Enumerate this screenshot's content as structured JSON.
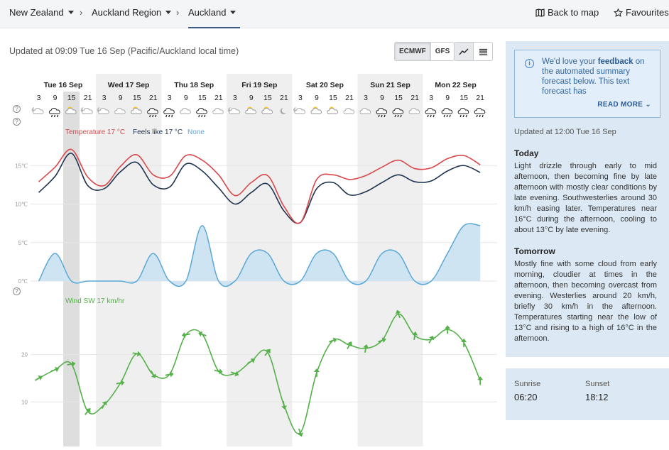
{
  "breadcrumbs": [
    {
      "label": "New Zealand"
    },
    {
      "label": "Auckland Region"
    },
    {
      "label": "Auckland"
    }
  ],
  "nav": {
    "back_to_map": "Back to map",
    "favourites": "Favourites"
  },
  "updated": "Updated at 09:09 Tue 16 Sep (Pacific/Auckland local time)",
  "models": [
    "ECMWF",
    "GFS"
  ],
  "selected_model": "ECMWF",
  "days": [
    {
      "label": "Tue 16 Sep",
      "hours": [
        "3",
        "9",
        "15",
        "21"
      ],
      "icons": [
        "cloud-moon",
        "cloud-rain",
        "sun-cloud",
        "cloud-moon"
      ]
    },
    {
      "label": "Wed 17 Sep",
      "hours": [
        "3",
        "9",
        "15",
        "21"
      ],
      "icons": [
        "cloud-moon",
        "cloud",
        "sun-cloud",
        "cloud-rain"
      ]
    },
    {
      "label": "Thu 18 Sep",
      "hours": [
        "3",
        "9",
        "15",
        "21"
      ],
      "icons": [
        "cloud-rain",
        "cloud",
        "cloud-rain",
        "cloud"
      ]
    },
    {
      "label": "Fri 19 Sep",
      "hours": [
        "3",
        "9",
        "15",
        "21"
      ],
      "icons": [
        "cloud-moon",
        "sun-cloud",
        "sun-cloud",
        "moon"
      ]
    },
    {
      "label": "Sat 20 Sep",
      "hours": [
        "3",
        "9",
        "15",
        "21"
      ],
      "icons": [
        "cloud-moon",
        "sun-cloud",
        "sun-cloud",
        "cloud"
      ]
    },
    {
      "label": "Sun 21 Sep",
      "hours": [
        "3",
        "9",
        "15",
        "21"
      ],
      "icons": [
        "cloud",
        "cloud-rain",
        "cloud-rain",
        "cloud"
      ]
    },
    {
      "label": "Mon 22 Sep",
      "hours": [
        "3",
        "9",
        "15",
        "21"
      ],
      "icons": [
        "cloud-rain",
        "cloud-rain",
        "cloud-rain",
        "cloud-rain"
      ]
    }
  ],
  "colors": {
    "temperature": "#d9484b",
    "feels_like": "#1f3350",
    "rain": "#5ba8d6",
    "wind": "#55b04a"
  },
  "chart_data": [
    {
      "type": "line",
      "legend": [
        "Temperature 17 °C",
        "Feels like 17 °C",
        "None"
      ],
      "y_ticks": [
        "15℃",
        "10℃",
        "5℃",
        "0℃"
      ],
      "x": [
        "Tue 3",
        "Tue 9",
        "Tue 15",
        "Tue 21",
        "Wed 3",
        "Wed 9",
        "Wed 15",
        "Wed 21",
        "Thu 3",
        "Thu 9",
        "Thu 15",
        "Thu 21",
        "Fri 3",
        "Fri 9",
        "Fri 15",
        "Fri 21",
        "Sat 3",
        "Sat 9",
        "Sat 15",
        "Sat 21",
        "Sun 3",
        "Sun 9",
        "Sun 15",
        "Sun 21",
        "Mon 3",
        "Mon 9",
        "Mon 15",
        "Mon 21"
      ],
      "series": [
        {
          "name": "Temperature 17 °C",
          "values": [
            12.9,
            14.8,
            17.1,
            13.5,
            12.4,
            14.9,
            16.4,
            13.8,
            13.6,
            16.3,
            15.7,
            13.8,
            11.1,
            12.8,
            13.7,
            9.7,
            7.6,
            13.2,
            13.8,
            13.2,
            13.7,
            14.8,
            15.7,
            14.6,
            14.7,
            15.9,
            16.3,
            15.1
          ]
        },
        {
          "name": "Feels like 17 °C",
          "values": [
            11.5,
            13.6,
            16.6,
            12.4,
            12.0,
            14.2,
            15.4,
            12.5,
            12.2,
            15.2,
            14.3,
            12.1,
            10.0,
            11.5,
            12.6,
            9.1,
            7.6,
            12.0,
            12.8,
            11.2,
            11.6,
            12.8,
            13.8,
            12.9,
            13.0,
            14.3,
            15.0,
            14.1
          ]
        },
        {
          "name": "None",
          "values": [
            0,
            3.6,
            0,
            0,
            0,
            0,
            0,
            3.6,
            0,
            0,
            7.2,
            0,
            0,
            3.6,
            3.6,
            0,
            0,
            3.6,
            3.6,
            0,
            0,
            3.6,
            3.6,
            0,
            0,
            3.6,
            7.2,
            7.2
          ]
        }
      ],
      "ylim": [
        0,
        19
      ]
    },
    {
      "type": "line",
      "legend": [
        "Wind SW 17 km/hr"
      ],
      "y_ticks": [
        "20",
        "10"
      ],
      "series": [
        {
          "name": "Wind SW 17 km/hr",
          "values": [
            15,
            16.8,
            18,
            8,
            9.4,
            14,
            20.2,
            15.8,
            15.8,
            24.2,
            24.3,
            16.5,
            16,
            18.6,
            20.5,
            9.3,
            3.5,
            16.2,
            23,
            22,
            21.3,
            23,
            28.6,
            24,
            23.2,
            25.3,
            22.5,
            14.5
          ]
        }
      ],
      "ylim": [
        0,
        32
      ]
    }
  ],
  "info": {
    "text_pre": "We'd love your ",
    "text_bold": "feedback",
    "text_post": " on the automated summary forecast below. This text forecast has",
    "read_more": "READ MORE"
  },
  "forecast": {
    "updated": "Updated at 12:00 Tue 16 Sep",
    "today_title": "Today",
    "today_text": "Light drizzle through early to mid afternoon, then becoming fine by late afternoon with mostly clear conditions by late evening. Southwesterlies around 30 km/h easing later. Temperatures near 16°C during the afternoon, cooling to about 13°C by late evening.",
    "tomorrow_title": "Tomorrow",
    "tomorrow_text": "Mostly fine with some cloud from early morning, cloudier at times in the afternoon, then becoming overcast from evening. Westerlies around 20 km/h, briefly 30 km/h in the afternoon. Temperatures starting near the low of 13°C and rising to a high of 16°C in the afternoon."
  },
  "sun": {
    "sunrise_label": "Sunrise",
    "sunrise": "06:20",
    "sunset_label": "Sunset",
    "sunset": "18:12"
  }
}
